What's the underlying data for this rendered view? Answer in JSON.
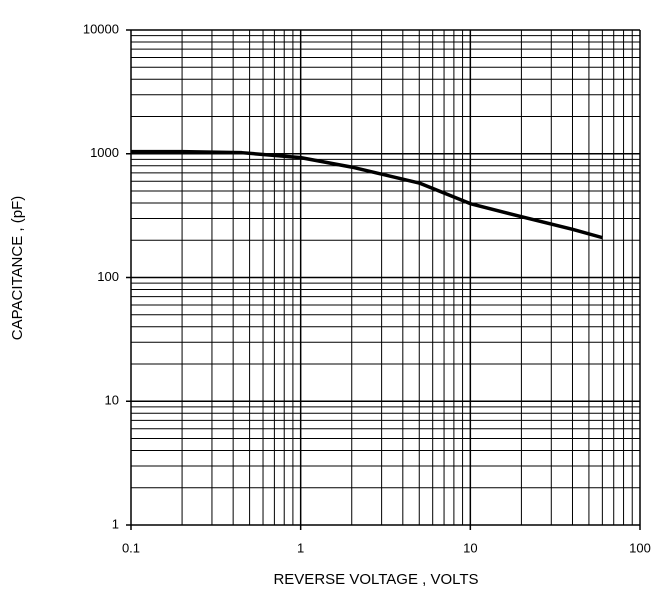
{
  "chart_data": {
    "type": "line",
    "x_label": "REVERSE VOLTAGE , VOLTS",
    "y_label": "CAPACITANCE , (pF)",
    "x": [
      0.1,
      0.2,
      0.45,
      1,
      2,
      5,
      10,
      20,
      40,
      60
    ],
    "series": [
      {
        "color": "#000000",
        "values": [
          1040,
          1040,
          1020,
          930,
          780,
          580,
          395,
          310,
          245,
          210
        ]
      }
    ],
    "xlim": [
      0.1,
      100
    ],
    "xticks": [
      0.1,
      1,
      10,
      100
    ],
    "ylim": [
      1,
      10000
    ],
    "yticks": [
      1,
      10,
      100,
      1000,
      10000
    ],
    "xscale": "log",
    "yscale": "log",
    "grid": true
  }
}
